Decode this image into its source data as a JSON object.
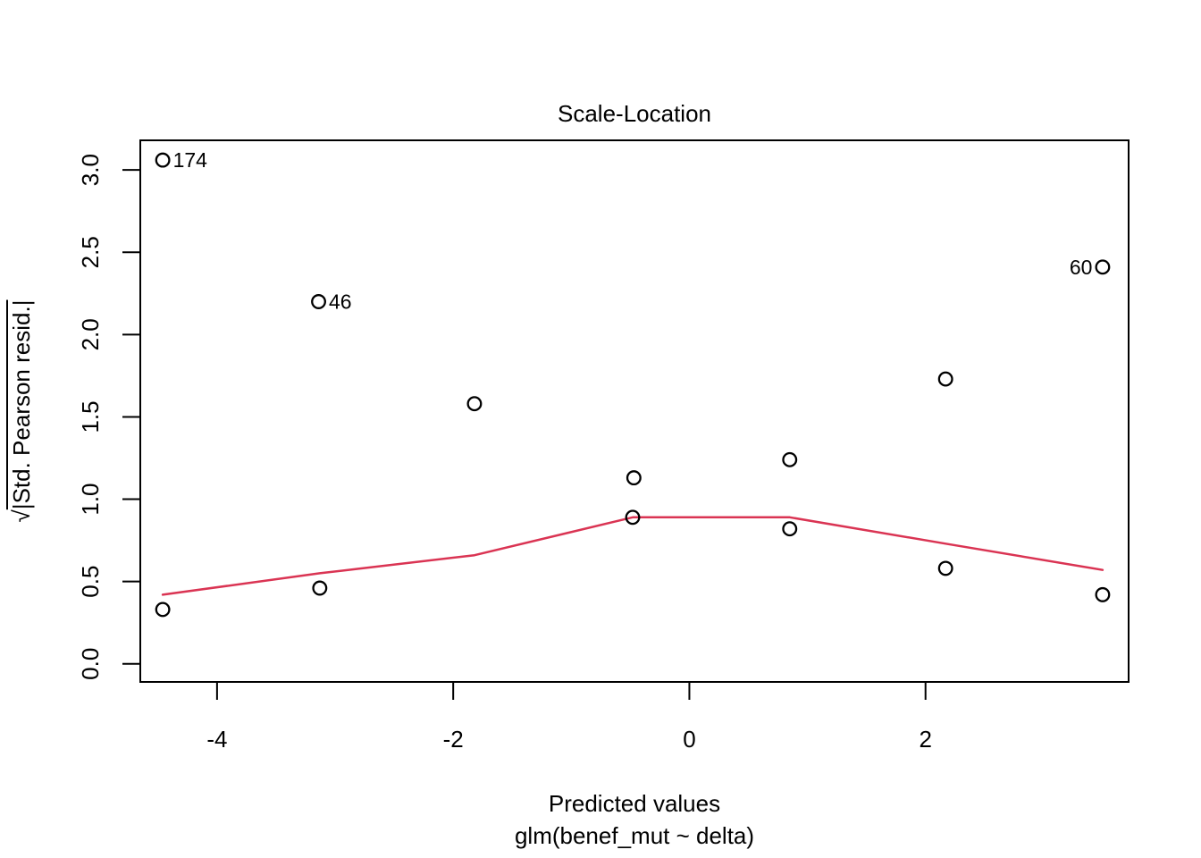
{
  "figure": {
    "title": "Scale-Location",
    "xlabel": "Predicted values",
    "sub_caption": "glm(benef_mut ~ delta)",
    "ylabel": {
      "sqrt": "√",
      "body": "|Std. Pearson resid.|"
    }
  },
  "colors": {
    "smoother": "#DA3453",
    "axis": "#000000",
    "background": "#ffffff"
  },
  "chart_data": {
    "type": "scatter",
    "title": "Scale-Location",
    "xlabel": "Predicted values",
    "sub_caption": "glm(benef_mut ~ delta)",
    "ylabel": "√|Std. Pearson resid.|",
    "xlim": [
      -4.65,
      3.72
    ],
    "ylim": [
      -0.11,
      3.18
    ],
    "xticks": [
      "-4",
      "-2",
      "0",
      "2"
    ],
    "xtick_values": [
      -4,
      -2,
      0,
      2
    ],
    "yticks": [
      "0.0",
      "0.5",
      "1.0",
      "1.5",
      "2.0",
      "2.5",
      "3.0"
    ],
    "ytick_values": [
      0.0,
      0.5,
      1.0,
      1.5,
      2.0,
      2.5,
      3.0
    ],
    "grid": false,
    "legend": "none",
    "points": [
      {
        "x": -4.46,
        "y": 3.06,
        "label": "174",
        "label_side": "right"
      },
      {
        "x": -3.14,
        "y": 2.2,
        "label": "46",
        "label_side": "right"
      },
      {
        "x": 3.5,
        "y": 2.41,
        "label": "60",
        "label_side": "left"
      },
      {
        "x": -1.82,
        "y": 1.58
      },
      {
        "x": -0.47,
        "y": 1.13
      },
      {
        "x": -0.48,
        "y": 0.89
      },
      {
        "x": 0.85,
        "y": 1.24
      },
      {
        "x": 0.85,
        "y": 0.82
      },
      {
        "x": 2.17,
        "y": 1.73
      },
      {
        "x": 2.17,
        "y": 0.58
      },
      {
        "x": -4.46,
        "y": 0.33
      },
      {
        "x": -3.13,
        "y": 0.46
      },
      {
        "x": 3.5,
        "y": 0.42
      }
    ],
    "smoother_line": [
      {
        "x": -4.46,
        "y": 0.42
      },
      {
        "x": -3.13,
        "y": 0.55
      },
      {
        "x": -1.82,
        "y": 0.66
      },
      {
        "x": -0.48,
        "y": 0.89
      },
      {
        "x": 0.85,
        "y": 0.89
      },
      {
        "x": 2.17,
        "y": 0.73
      },
      {
        "x": 3.5,
        "y": 0.57
      }
    ]
  }
}
